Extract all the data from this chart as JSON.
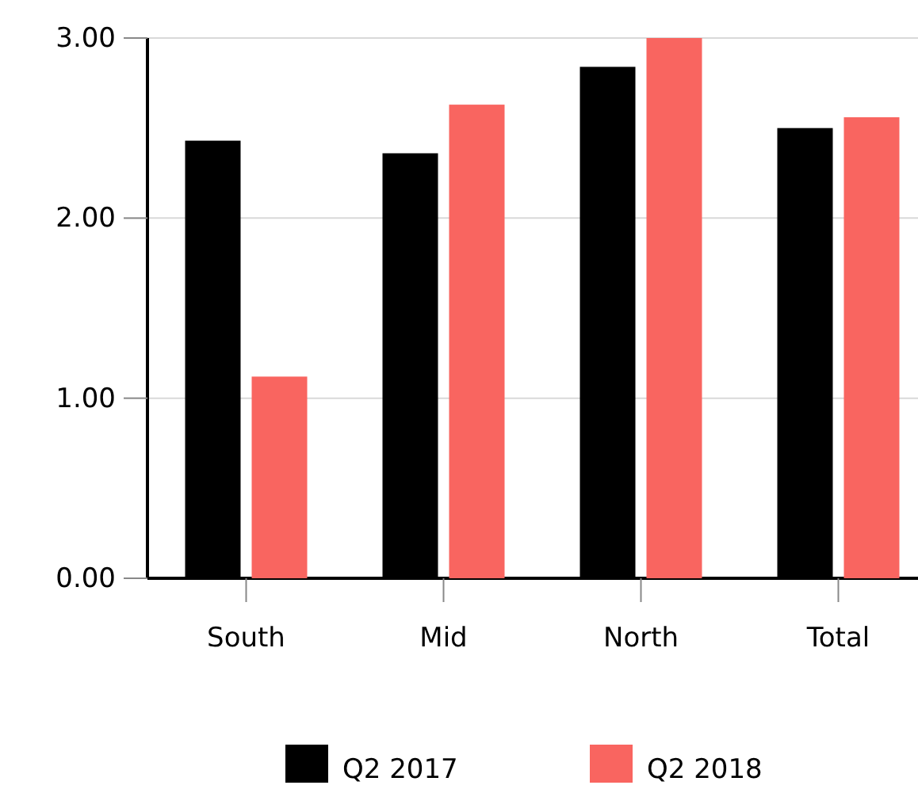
{
  "chart_data": {
    "type": "bar",
    "categories": [
      "South",
      "Mid",
      "North",
      "Total"
    ],
    "series": [
      {
        "name": "Q2 2017",
        "color": "#000000",
        "values": [
          2.43,
          2.36,
          2.84,
          2.5
        ]
      },
      {
        "name": "Q2 2018",
        "color": "#f96560",
        "values": [
          1.12,
          2.63,
          3.0,
          2.56
        ]
      }
    ],
    "ylim": [
      0,
      3
    ],
    "yticks": [
      {
        "value": 0,
        "label": "0.00"
      },
      {
        "value": 1,
        "label": "1.00"
      },
      {
        "value": 2,
        "label": "2.00"
      },
      {
        "value": 3,
        "label": "3.00"
      }
    ],
    "grid": "y",
    "legend": "bottom"
  }
}
